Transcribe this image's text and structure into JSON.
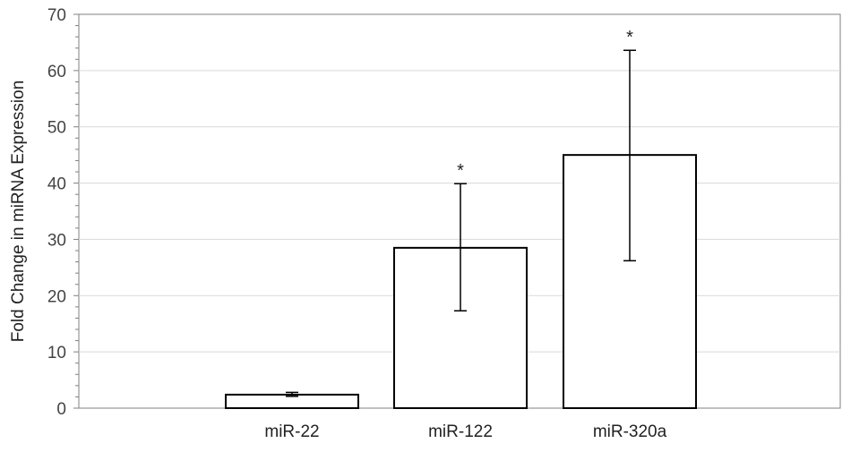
{
  "chart_data": {
    "type": "bar",
    "title": "",
    "xlabel": "",
    "ylabel": "Fold Change in miRNA Expression",
    "ylim": [
      0,
      70
    ],
    "yticks": [
      0,
      10,
      20,
      30,
      40,
      50,
      60,
      70
    ],
    "grid": true,
    "categories": [
      "miR-22",
      "miR-122",
      "miR-320a"
    ],
    "values": [
      2.4,
      28.5,
      45.0
    ],
    "error_low": [
      2.1,
      17.3,
      26.2
    ],
    "error_high": [
      2.8,
      39.9,
      63.6
    ],
    "significance": [
      "",
      "*",
      "*"
    ],
    "colors": {
      "bar_fill": "#ffffff",
      "bar_stroke": "#000000",
      "grid": "#d9d9d9",
      "axis": "#808080"
    }
  }
}
